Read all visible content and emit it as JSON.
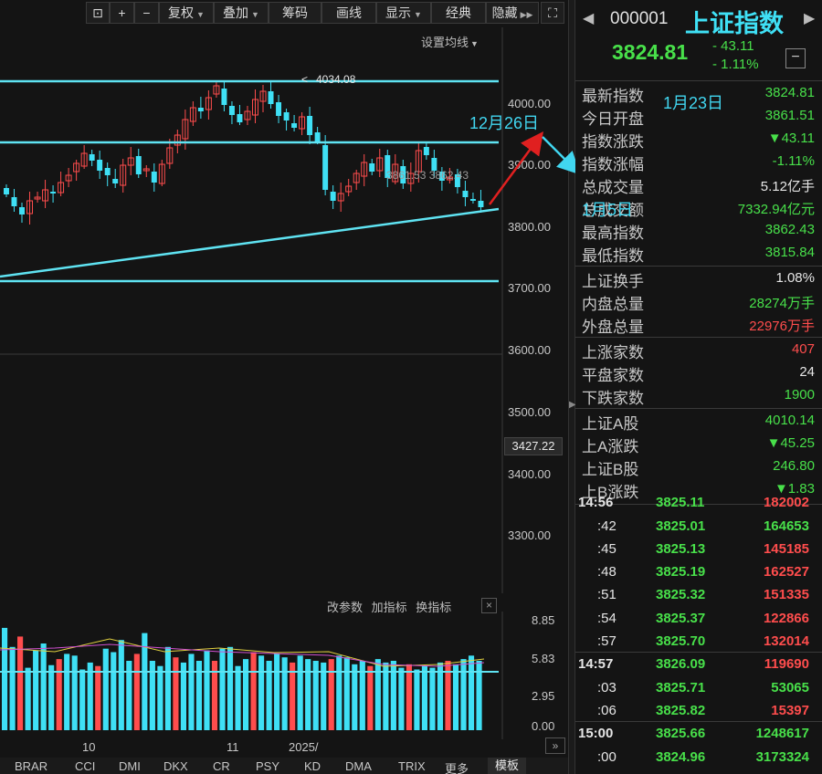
{
  "toolbar": {
    "buttons": [
      {
        "label": "复权"
      },
      {
        "label": "叠加"
      },
      {
        "label": "筹码"
      },
      {
        "label": "画线"
      },
      {
        "label": "显示"
      },
      {
        "label": "经典"
      },
      {
        "label": "隐藏"
      }
    ],
    "ma_setting": "设置均线"
  },
  "price_axis": {
    "ticks": [
      "4000.00",
      "3900.00",
      "3800.00",
      "3700.00",
      "3600.00",
      "3500.00",
      "3400.00",
      "3300.00"
    ],
    "current": "3427.22"
  },
  "annotations": {
    "high_value": "4034.08",
    "high_arrow": "<",
    "ma_text": "3861.53 3862.43",
    "date_dec26": "12月26日",
    "date_jan23": "1月23日",
    "date_jan5": "1月5日"
  },
  "indicator_bar": {
    "change_params": "改参数",
    "add_indicator": "加指标",
    "switch_indicator": "换指标"
  },
  "volume_axis": {
    "ticks": [
      "8.85",
      "5.83",
      "2.95",
      "0.00"
    ]
  },
  "x_axis": {
    "ticks": [
      "10",
      "11",
      "2025/"
    ]
  },
  "bottom_tabs": [
    "BRAR",
    "CCI",
    "DMI",
    "DKX",
    "CR",
    "PSY",
    "KD",
    "DMA",
    "TRIX",
    "更多",
    "模板"
  ],
  "header": {
    "code": "000001",
    "name": "上证指数",
    "last": "3824.81",
    "change": "- 43.11",
    "change_pct": "- 1.11%"
  },
  "stats_group1": [
    {
      "label": "最新指数",
      "value": "3824.81",
      "color": "green"
    },
    {
      "label": "今日开盘",
      "value": "3861.51",
      "color": "green"
    },
    {
      "label": "指数涨跌",
      "value": "▼43.11",
      "color": "green"
    },
    {
      "label": "指数涨幅",
      "value": "-1.11%",
      "color": "green"
    },
    {
      "label": "总成交量",
      "value": "5.12亿手",
      "color": "white"
    },
    {
      "label": "总成交额",
      "value": "7332.94亿元",
      "color": "green"
    },
    {
      "label": "最高指数",
      "value": "3862.43",
      "color": "green"
    },
    {
      "label": "最低指数",
      "value": "3815.84",
      "color": "green"
    }
  ],
  "stats_group2": [
    {
      "label": "上证换手",
      "value": "1.08%",
      "color": "white"
    },
    {
      "label": "内盘总量",
      "value": "28274万手",
      "color": "green"
    },
    {
      "label": "外盘总量",
      "value": "22976万手",
      "color": "red"
    }
  ],
  "stats_group3": [
    {
      "label": "上涨家数",
      "value": "407",
      "color": "red"
    },
    {
      "label": "平盘家数",
      "value": "24",
      "color": "white"
    },
    {
      "label": "下跌家数",
      "value": "1900",
      "color": "green"
    }
  ],
  "stats_group4": [
    {
      "label": "上证A股",
      "value": "4010.14",
      "color": "green"
    },
    {
      "label": "上A涨跌",
      "value": "▼45.25",
      "color": "green"
    },
    {
      "label": "上证B股",
      "value": "246.80",
      "color": "green"
    },
    {
      "label": "上B涨跌",
      "value": "▼1.83",
      "color": "green"
    }
  ],
  "ticks": [
    {
      "time": "14:56",
      "price": "3825.11",
      "vol": "182002",
      "color": "red",
      "bold": true
    },
    {
      "time": ":42",
      "price": "3825.01",
      "vol": "164653",
      "color": "green",
      "bold": false
    },
    {
      "time": ":45",
      "price": "3825.13",
      "vol": "145185",
      "color": "red",
      "bold": false
    },
    {
      "time": ":48",
      "price": "3825.19",
      "vol": "162527",
      "color": "red",
      "bold": false
    },
    {
      "time": ":51",
      "price": "3825.32",
      "vol": "151335",
      "color": "red",
      "bold": false
    },
    {
      "time": ":54",
      "price": "3825.37",
      "vol": "122866",
      "color": "red",
      "bold": false
    },
    {
      "time": ":57",
      "price": "3825.70",
      "vol": "132014",
      "color": "red",
      "bold": false
    },
    {
      "time": "14:57",
      "price": "3826.09",
      "vol": "119690",
      "color": "red",
      "bold": true
    },
    {
      "time": ":03",
      "price": "3825.71",
      "vol": "53065",
      "color": "green",
      "bold": false
    },
    {
      "time": ":06",
      "price": "3825.82",
      "vol": "15397",
      "color": "red",
      "bold": false
    },
    {
      "time": "15:00",
      "price": "3825.66",
      "vol": "1248617",
      "color": "green",
      "bold": true
    },
    {
      "time": ":00",
      "price": "3824.96",
      "vol": "3173324",
      "color": "green",
      "bold": false
    }
  ],
  "colors": {
    "up": "#ff4d4d",
    "down": "#48e04a",
    "cyan": "#3fe0f5",
    "arrow": "#e02020"
  }
}
